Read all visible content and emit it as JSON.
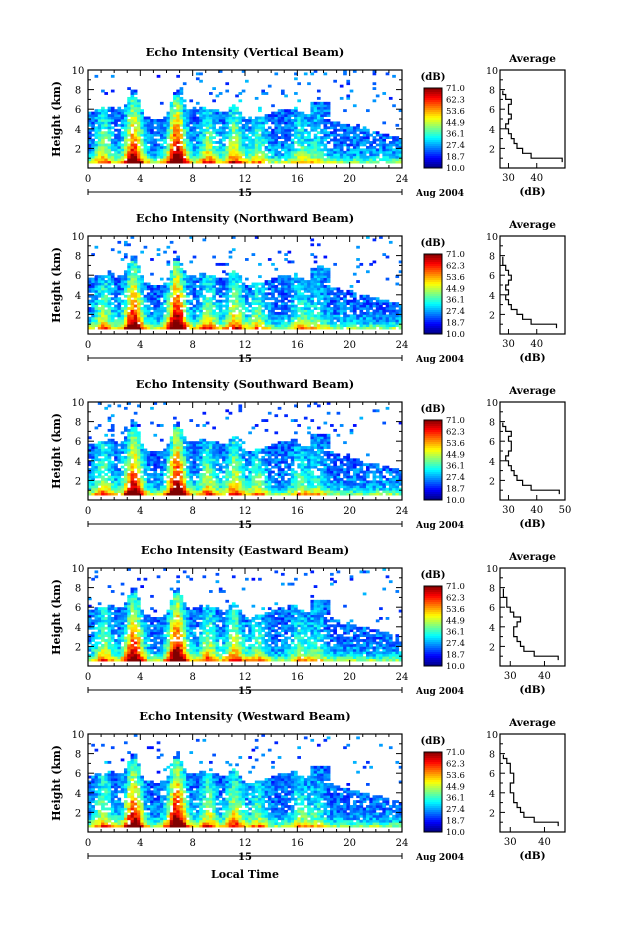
{
  "figure": {
    "xlabel": "Local Time",
    "units_label": "(dB)",
    "average_title": "Average",
    "ylabel": "Height (km)",
    "date_day": "15",
    "date_month": "Aug 2004"
  },
  "chart_data": [
    {
      "type": "heatmap",
      "title": "Echo Intensity (Vertical Beam)",
      "x_range": [
        0,
        24
      ],
      "x_ticks": [
        0,
        4,
        8,
        12,
        16,
        20,
        24
      ],
      "y_range": [
        0,
        10
      ],
      "y_ticks": [
        2,
        4,
        6,
        8,
        10
      ],
      "colorbar": {
        "label": "(dB)",
        "range": [
          10.0,
          71.0
        ],
        "ticks": [
          "71.0",
          "62.3",
          "53.6",
          "44.9",
          "36.1",
          "27.4",
          "18.7",
          "10.0"
        ]
      },
      "average": {
        "title": "Average",
        "xlabel": "(dB)",
        "x_range": [
          27,
          50
        ],
        "x_ticks": [
          30,
          40
        ],
        "height": [
          0.6,
          1.0,
          1.5,
          2.0,
          2.5,
          3.0,
          3.5,
          4.0,
          4.5,
          5.0,
          5.5,
          6.0,
          6.5,
          7.0,
          7.5
        ],
        "db": [
          49,
          38,
          35,
          33,
          32,
          31,
          30,
          29,
          30,
          31,
          30,
          30,
          31,
          29,
          28
        ]
      }
    },
    {
      "type": "heatmap",
      "title": "Echo Intensity (Northward Beam)",
      "x_range": [
        0,
        24
      ],
      "x_ticks": [
        0,
        4,
        8,
        12,
        16,
        20,
        24
      ],
      "y_range": [
        0,
        10
      ],
      "y_ticks": [
        2,
        4,
        6,
        8,
        10
      ],
      "colorbar": {
        "label": "(dB)",
        "range": [
          10.0,
          71.0
        ],
        "ticks": [
          "71.0",
          "62.3",
          "53.6",
          "44.9",
          "36.1",
          "27.4",
          "18.7",
          "10.0"
        ]
      },
      "average": {
        "title": "Average",
        "xlabel": "(dB)",
        "x_range": [
          27,
          50
        ],
        "x_ticks": [
          30,
          40
        ],
        "height": [
          0.6,
          1.0,
          1.5,
          2.0,
          2.5,
          3.0,
          3.5,
          4.0,
          4.5,
          5.0,
          5.5,
          6.0,
          6.5,
          7.0,
          7.5
        ],
        "db": [
          47,
          38,
          35,
          33,
          31,
          30,
          29,
          30,
          29,
          30,
          31,
          30,
          29,
          28,
          28
        ]
      }
    },
    {
      "type": "heatmap",
      "title": "Echo Intensity (Southward Beam)",
      "x_range": [
        0,
        24
      ],
      "x_ticks": [
        0,
        4,
        8,
        12,
        16,
        20,
        24
      ],
      "y_range": [
        0,
        10
      ],
      "y_ticks": [
        2,
        4,
        6,
        8,
        10
      ],
      "colorbar": {
        "label": "(dB)",
        "range": [
          10.0,
          71.0
        ],
        "ticks": [
          "71.0",
          "62.3",
          "53.6",
          "44.9",
          "36.1",
          "27.4",
          "18.7",
          "10.0"
        ]
      },
      "average": {
        "title": "Average",
        "xlabel": "(dB)",
        "x_range": [
          27,
          50
        ],
        "x_ticks": [
          30,
          40,
          50
        ],
        "height": [
          0.6,
          1.0,
          1.5,
          2.0,
          2.5,
          3.0,
          3.5,
          4.0,
          4.5,
          5.0,
          5.5,
          6.0,
          6.5,
          7.0,
          7.5
        ],
        "db": [
          48,
          38,
          35,
          33,
          32,
          31,
          30,
          29,
          30,
          31,
          31,
          30,
          31,
          29,
          28
        ]
      }
    },
    {
      "type": "heatmap",
      "title": "Echo Intensity (Eastward Beam)",
      "x_range": [
        0,
        24
      ],
      "x_ticks": [
        0,
        4,
        8,
        12,
        16,
        20,
        24
      ],
      "y_range": [
        0,
        10
      ],
      "y_ticks": [
        2,
        4,
        6,
        8,
        10
      ],
      "colorbar": {
        "label": "(dB)",
        "range": [
          10.0,
          71.0
        ],
        "ticks": [
          "71.0",
          "62.3",
          "53.6",
          "44.9",
          "36.1",
          "27.4",
          "18.7",
          "10.0"
        ]
      },
      "average": {
        "title": "Average",
        "xlabel": "(dB)",
        "x_range": [
          27,
          46
        ],
        "x_ticks": [
          30,
          40
        ],
        "height": [
          0.6,
          1.0,
          1.5,
          2.0,
          2.5,
          3.0,
          3.5,
          4.0,
          4.5,
          5.0,
          5.5,
          6.0,
          6.5,
          7.0,
          7.5
        ],
        "db": [
          44,
          37,
          34,
          33,
          32,
          31,
          31,
          32,
          33,
          31,
          30,
          29,
          29,
          28,
          28
        ]
      }
    },
    {
      "type": "heatmap",
      "title": "Echo Intensity (Westward Beam)",
      "x_range": [
        0,
        24
      ],
      "x_ticks": [
        0,
        4,
        8,
        12,
        16,
        20,
        24
      ],
      "y_range": [
        0,
        10
      ],
      "y_ticks": [
        2,
        4,
        6,
        8,
        10
      ],
      "colorbar": {
        "label": "(dB)",
        "range": [
          10.0,
          71.0
        ],
        "ticks": [
          "71.0",
          "62.3",
          "53.6",
          "44.9",
          "36.1",
          "27.4",
          "18.7",
          "10.0"
        ]
      },
      "average": {
        "title": "Average",
        "xlabel": "(dB)",
        "x_range": [
          27,
          46
        ],
        "x_ticks": [
          30,
          40
        ],
        "height": [
          0.6,
          1.0,
          1.5,
          2.0,
          2.5,
          3.0,
          3.5,
          4.0,
          4.5,
          5.0,
          5.5,
          6.0,
          6.5,
          7.0,
          7.5
        ],
        "db": [
          44,
          37,
          34,
          33,
          32,
          31,
          31,
          30,
          30,
          31,
          31,
          30,
          30,
          29,
          28
        ]
      }
    }
  ]
}
